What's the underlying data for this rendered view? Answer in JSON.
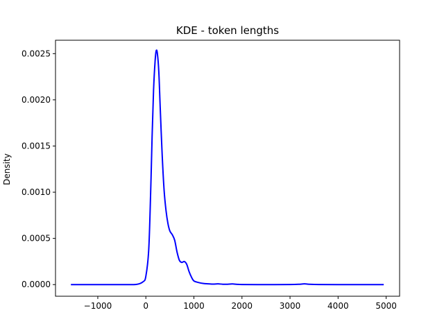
{
  "chart_data": {
    "type": "line",
    "title": "KDE - token lengths",
    "xlabel": "",
    "ylabel": "Density",
    "xlim": [
      -1880,
      5280
    ],
    "ylim": [
      -0.000126,
      0.002645
    ],
    "xticks": [
      -1000,
      0,
      1000,
      2000,
      3000,
      4000,
      5000
    ],
    "xtick_labels": [
      "−1000",
      "0",
      "1000",
      "2000",
      "3000",
      "4000",
      "5000"
    ],
    "yticks": [
      0.0,
      0.0005,
      0.001,
      0.0015,
      0.002,
      0.0025
    ],
    "ytick_labels": [
      "0.0000",
      "0.0005",
      "0.0010",
      "0.0015",
      "0.0020",
      "0.0025"
    ],
    "grid": false,
    "legend": "none",
    "series": [
      {
        "color": "#0000ff",
        "x": [
          -1560,
          -1000,
          -500,
          -200,
          -60,
          0,
          60,
          100,
          130,
          160,
          190,
          215,
          240,
          270,
          300,
          340,
          380,
          420,
          460,
          500,
          550,
          600,
          650,
          700,
          750,
          800,
          850,
          900,
          950,
          1000,
          1100,
          1200,
          1300,
          1400,
          1500,
          1600,
          1700,
          1800,
          1900,
          2000,
          2500,
          3000,
          3200,
          3300,
          3400,
          3600,
          4000,
          4500,
          4950
        ],
        "y": [
          0,
          0,
          0,
          2e-06,
          3e-05,
          9e-05,
          0.00038,
          0.001,
          0.0016,
          0.0021,
          0.0024,
          0.00253,
          0.0025,
          0.0023,
          0.0019,
          0.0014,
          0.00102,
          0.0008,
          0.00066,
          0.00058,
          0.00054,
          0.00048,
          0.00035,
          0.00026,
          0.00024,
          0.00025,
          0.00022,
          0.00014,
          8e-05,
          4e-05,
          2.2e-05,
          1.2e-05,
          8e-06,
          5e-06,
          8e-06,
          4e-06,
          4e-06,
          7e-06,
          3e-06,
          1e-06,
          0,
          1e-06,
          4e-06,
          8e-06,
          4e-06,
          1e-06,
          0,
          0,
          0
        ]
      }
    ]
  }
}
